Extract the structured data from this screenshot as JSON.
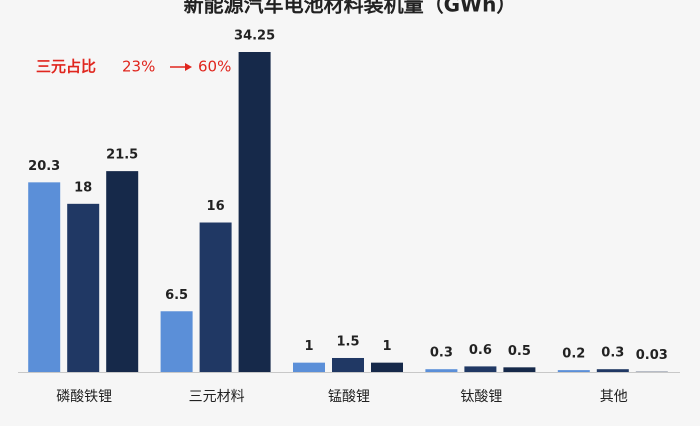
{
  "chart_data": {
    "type": "bar",
    "title": "新能源汽车电池材料装机量（GWh）",
    "categories": [
      "磷酸铁锂",
      "三元材料",
      "锰酸锂",
      "钛酸锂",
      "其他"
    ],
    "series": [
      {
        "color": "#5b8fd8",
        "values": [
          20.3,
          6.5,
          1,
          0.3,
          0.2
        ]
      },
      {
        "color": "#203864",
        "values": [
          18,
          16,
          1.5,
          0.6,
          0.3
        ]
      },
      {
        "color": "#16294a",
        "values": [
          21.5,
          34.25,
          1,
          0.5,
          0.03
        ]
      }
    ],
    "annotations": [
      "三元占比",
      "23%",
      "60%"
    ],
    "annotation_color": "#e0261e"
  }
}
